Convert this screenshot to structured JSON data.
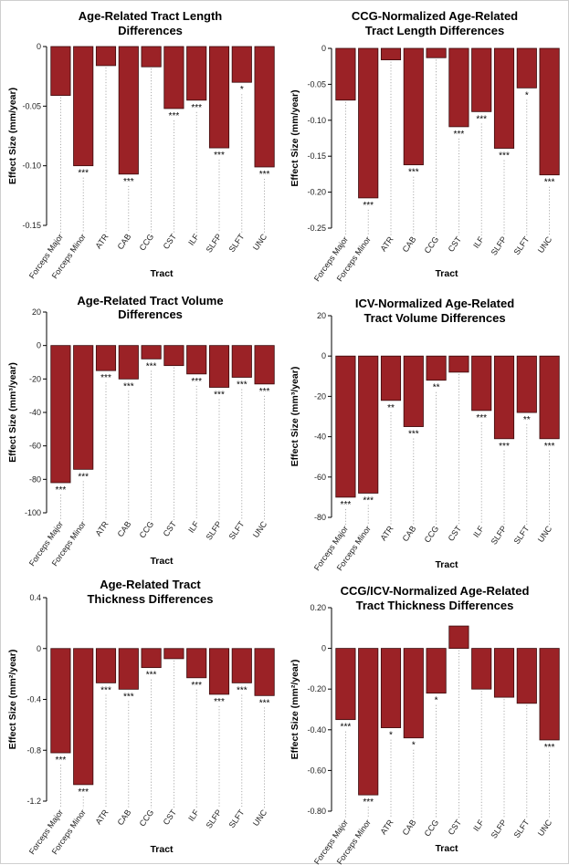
{
  "colors": {
    "bar": "#9b2226",
    "bar_stroke": "#3a0a0c",
    "axis": "#000000",
    "leader": "#9a9a9a"
  },
  "chart_data": [
    {
      "type": "bar",
      "title": [
        "Age-Related Tract Length",
        "Differences"
      ],
      "xlabel": "Tract",
      "ylabel": "Effect Size (mm/year)",
      "ylim": [
        -0.15,
        0
      ],
      "yticks": [
        0,
        -0.05,
        -0.1,
        -0.15
      ],
      "ytick_labels": [
        "0",
        "-0.05",
        "-0.10",
        "-0.15"
      ],
      "categories": [
        "Forceps Major",
        "Forceps Minor",
        "ATR",
        "CAB",
        "CCG",
        "CST",
        "ILF",
        "SLFP",
        "SLFT",
        "UNC"
      ],
      "values": [
        -0.041,
        -0.1,
        -0.016,
        -0.107,
        -0.017,
        -0.052,
        -0.045,
        -0.085,
        -0.03,
        -0.101
      ],
      "significance": [
        "",
        "***",
        "",
        "***",
        "",
        "***",
        "***",
        "***",
        "*",
        "***"
      ]
    },
    {
      "type": "bar",
      "title": [
        "CCG-Normalized Age-Related",
        "Tract Length Differences"
      ],
      "xlabel": "Tract",
      "ylabel": "Effect Size (mm/year)",
      "ylim": [
        -0.25,
        0
      ],
      "yticks": [
        0,
        -0.05,
        -0.1,
        -0.15,
        -0.2,
        -0.25
      ],
      "ytick_labels": [
        "0",
        "-0.05",
        "-0.10",
        "-0.15",
        "-0.20",
        "-0.25"
      ],
      "categories": [
        "Forceps Major",
        "Forceps Minor",
        "ATR",
        "CAB",
        "CCG",
        "CST",
        "ILF",
        "SLFP",
        "SLFT",
        "UNC"
      ],
      "values": [
        -0.072,
        -0.208,
        -0.016,
        -0.162,
        -0.013,
        -0.109,
        -0.088,
        -0.139,
        -0.055,
        -0.176
      ],
      "significance": [
        "",
        "***",
        "",
        "***",
        "",
        "***",
        "***",
        "***",
        "*",
        "***"
      ]
    },
    {
      "type": "bar",
      "title": [
        "Age-Related Tract Volume",
        "Differences"
      ],
      "xlabel": "Tract",
      "ylabel": "Effect Size (mm³/year)",
      "ylim": [
        -100,
        20
      ],
      "yticks": [
        20,
        0,
        -20,
        -40,
        -60,
        -80,
        -100
      ],
      "ytick_labels": [
        "20",
        "0",
        "-20",
        "-40",
        "-60",
        "-80",
        "-100"
      ],
      "categories": [
        "Forceps Major",
        "Forceps Minor",
        "ATR",
        "CAB",
        "CCG",
        "CST",
        "ILF",
        "SLFP",
        "SLFT",
        "UNC"
      ],
      "values": [
        -82,
        -74,
        -15,
        -20,
        -8,
        -12,
        -17,
        -25,
        -19,
        -23
      ],
      "significance": [
        "***",
        "***",
        "***",
        "***",
        "***",
        "",
        "***",
        "***",
        "***",
        "***"
      ]
    },
    {
      "type": "bar",
      "title": [
        "ICV-Normalized Age-Related",
        "Tract Volume Differences"
      ],
      "xlabel": "Tract",
      "ylabel": "Effect Size (mm³/year)",
      "ylim": [
        -80,
        20
      ],
      "yticks": [
        20,
        0,
        -20,
        -40,
        -60,
        -80
      ],
      "ytick_labels": [
        "20",
        "0",
        "-20",
        "-40",
        "-60",
        "-80"
      ],
      "categories": [
        "Forceps Major",
        "Forceps Minor",
        "ATR",
        "CAB",
        "CCG",
        "CST",
        "ILF",
        "SLFP",
        "SLFT",
        "UNC"
      ],
      "values": [
        -70,
        -68,
        -22,
        -35,
        -12,
        -8,
        -27,
        -41,
        -28,
        -41
      ],
      "significance": [
        "***",
        "***",
        "**",
        "***",
        "**",
        "",
        "***",
        "***",
        "**",
        "***"
      ]
    },
    {
      "type": "bar",
      "title": [
        "Age-Related Tract",
        "Thickness Differences"
      ],
      "xlabel": "Tract",
      "ylabel": "Effect Size (mm²/year)",
      "ylim": [
        -1.2,
        0.4
      ],
      "yticks": [
        0.4,
        0,
        -0.4,
        -0.8,
        -1.2
      ],
      "ytick_labels": [
        "0.4",
        "0",
        "-0.4",
        "-0.8",
        "-1.2"
      ],
      "categories": [
        "Forceps Major",
        "Forceps Minor",
        "ATR",
        "CAB",
        "CCG",
        "CST",
        "ILF",
        "SLFP",
        "SLFT",
        "UNC"
      ],
      "values": [
        -0.82,
        -1.07,
        -0.27,
        -0.32,
        -0.15,
        -0.08,
        -0.23,
        -0.36,
        -0.27,
        -0.37
      ],
      "significance": [
        "***",
        "***",
        "***",
        "***",
        "***",
        "",
        "***",
        "***",
        "***",
        "***"
      ]
    },
    {
      "type": "bar",
      "title": [
        "CCG/ICV-Normalized Age-Related",
        "Tract Thickness Differences"
      ],
      "xlabel": "Tract",
      "ylabel": "Effect Size (mm²/year)",
      "ylim": [
        -0.8,
        0.2
      ],
      "yticks": [
        0.2,
        0,
        -0.2,
        -0.4,
        -0.6,
        -0.8
      ],
      "ytick_labels": [
        "0.20",
        "0",
        "-0.20",
        "-0.40",
        "-0.60",
        "-0.80"
      ],
      "categories": [
        "Forceps Major",
        "Forceps Minor",
        "ATR",
        "CAB",
        "CCG",
        "CST",
        "ILF",
        "SLFP",
        "SLFT",
        "UNC"
      ],
      "values": [
        -0.35,
        -0.72,
        -0.39,
        -0.44,
        -0.22,
        0.11,
        -0.2,
        -0.24,
        -0.27,
        -0.45
      ],
      "significance": [
        "***",
        "***",
        "*",
        "*",
        "*",
        "",
        "",
        "",
        "",
        "***"
      ]
    }
  ]
}
